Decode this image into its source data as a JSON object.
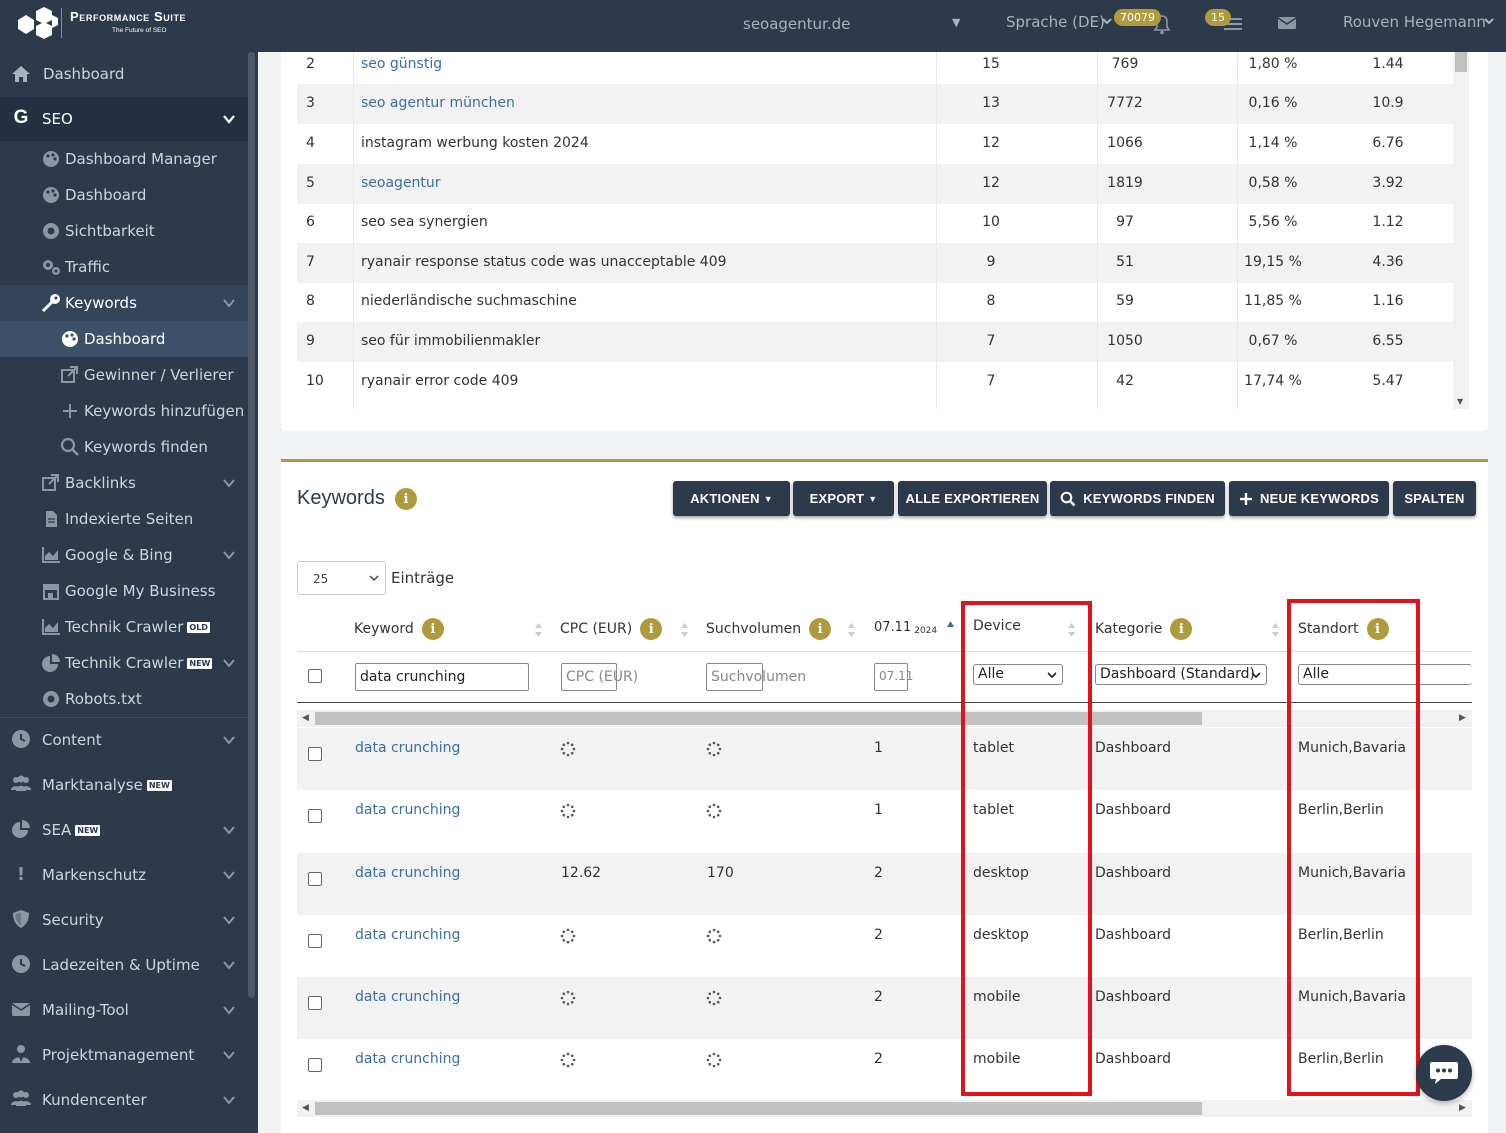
{
  "app": {
    "brand": "Performance Suite",
    "tagline": "The Future of SEO",
    "accent_color": "#b09a3e",
    "nav_color": "#2c3a4b"
  },
  "topbar": {
    "domain": "seoagentur.de",
    "language": "Sprache (DE)",
    "notifications_count": "70079",
    "tasks_count": "15",
    "user_name": "Rouven Hegemann"
  },
  "sidebar": {
    "items": [
      {
        "label": "Dashboard",
        "icon": "home-icon"
      },
      {
        "label": "SEO",
        "icon": "google-g-icon"
      },
      {
        "label": "Dashboard Manager",
        "icon": "palette-icon"
      },
      {
        "label": "Dashboard",
        "icon": "palette-icon"
      },
      {
        "label": "Sichtbarkeit",
        "icon": "eye-icon"
      },
      {
        "label": "Traffic",
        "icon": "gears-icon"
      },
      {
        "label": "Keywords",
        "icon": "key-icon"
      },
      {
        "label": "Dashboard",
        "icon": "palette-icon"
      },
      {
        "label": "Gewinner / Verlierer",
        "icon": "external-link-icon"
      },
      {
        "label": "Keywords hinzufügen",
        "icon": "plus-icon"
      },
      {
        "label": "Keywords finden",
        "icon": "search-icon"
      },
      {
        "label": "Backlinks",
        "icon": "external-link-icon"
      },
      {
        "label": "Indexierte Seiten",
        "icon": "file-icon"
      },
      {
        "label": "Google & Bing",
        "icon": "area-chart-icon"
      },
      {
        "label": "Google My Business",
        "icon": "store-icon"
      },
      {
        "label": "Technik Crawler",
        "icon": "area-chart-icon",
        "tag": "OLD"
      },
      {
        "label": "Technik Crawler",
        "icon": "pie-chart-icon",
        "tag": "NEW"
      },
      {
        "label": "Robots.txt",
        "icon": "eye-icon"
      },
      {
        "label": "Content",
        "icon": "clock-icon"
      },
      {
        "label": "Marktanalyse",
        "icon": "users-icon",
        "tag": "NEW"
      },
      {
        "label": "SEA",
        "icon": "pie-chart-icon",
        "tag": "NEW"
      },
      {
        "label": "Markenschutz",
        "icon": "exclamation-icon"
      },
      {
        "label": "Security",
        "icon": "shield-icon"
      },
      {
        "label": "Ladezeiten & Uptime",
        "icon": "clock-icon"
      },
      {
        "label": "Mailing-Tool",
        "icon": "envelope-icon"
      },
      {
        "label": "Projektmanagement",
        "icon": "user-tie-icon"
      },
      {
        "label": "Kundencenter",
        "icon": "users-icon"
      }
    ]
  },
  "top_table": {
    "rows": [
      {
        "rank": "2",
        "keyword": "seo günstig",
        "link": true,
        "a": "15",
        "b": "769",
        "c": "1,80 %",
        "d": "1.44"
      },
      {
        "rank": "3",
        "keyword": "seo agentur münchen",
        "link": true,
        "a": "13",
        "b": "7772",
        "c": "0,16 %",
        "d": "10.9"
      },
      {
        "rank": "4",
        "keyword": "instagram werbung kosten 2024",
        "link": false,
        "a": "12",
        "b": "1066",
        "c": "1,14 %",
        "d": "6.76"
      },
      {
        "rank": "5",
        "keyword": "seoagentur",
        "link": true,
        "a": "12",
        "b": "1819",
        "c": "0,58 %",
        "d": "3.92"
      },
      {
        "rank": "6",
        "keyword": "seo sea synergien",
        "link": false,
        "a": "10",
        "b": "97",
        "c": "5,56 %",
        "d": "1.12"
      },
      {
        "rank": "7",
        "keyword": "ryanair response status code was unacceptable 409",
        "link": false,
        "a": "9",
        "b": "51",
        "c": "19,15 %",
        "d": "4.36"
      },
      {
        "rank": "8",
        "keyword": "niederländische suchmaschine",
        "link": false,
        "a": "8",
        "b": "59",
        "c": "11,85 %",
        "d": "1.16"
      },
      {
        "rank": "9",
        "keyword": "seo für immobilienmakler",
        "link": false,
        "a": "7",
        "b": "1050",
        "c": "0,67 %",
        "d": "6.55"
      },
      {
        "rank": "10",
        "keyword": "ryanair error code 409",
        "link": false,
        "a": "7",
        "b": "42",
        "c": "17,74 %",
        "d": "5.47"
      }
    ]
  },
  "keywords_panel": {
    "title": "Keywords",
    "buttons": {
      "aktionen": "AKTIONEN",
      "export": "EXPORT",
      "alle_exportieren": "ALLE EXPORTIEREN",
      "keywords_finden": "KEYWORDS FINDEN",
      "neue_keywords": "NEUE KEYWORDS",
      "spalten": "SPALTEN"
    },
    "page_length": "25",
    "page_length_label": "Einträge",
    "columns": {
      "keyword": "Keyword",
      "cpc": "CPC (EUR)",
      "volume": "Suchvolumen",
      "date": "07.11",
      "date_year": "2024",
      "device": "Device",
      "category": "Kategorie",
      "location": "Standort"
    },
    "filters": {
      "keyword": "data crunching",
      "cpc_placeholder": "CPC (EUR)",
      "volume_placeholder": "Suchvolumen",
      "date_placeholder": "07.11",
      "device": "Alle",
      "category": "Dashboard (Standard)",
      "location": "Alle"
    },
    "rows": [
      {
        "keyword": "data crunching",
        "cpc": "",
        "volume": "",
        "date_value": "1",
        "device": "tablet",
        "category": "Dashboard",
        "location": "Munich,Bavaria"
      },
      {
        "keyword": "data crunching",
        "cpc": "",
        "volume": "",
        "date_value": "1",
        "device": "tablet",
        "category": "Dashboard",
        "location": "Berlin,Berlin"
      },
      {
        "keyword": "data crunching",
        "cpc": "12.62",
        "volume": "170",
        "date_value": "2",
        "device": "desktop",
        "category": "Dashboard",
        "location": "Munich,Bavaria"
      },
      {
        "keyword": "data crunching",
        "cpc": "",
        "volume": "",
        "date_value": "2",
        "device": "desktop",
        "category": "Dashboard",
        "location": "Berlin,Berlin"
      },
      {
        "keyword": "data crunching",
        "cpc": "",
        "volume": "",
        "date_value": "2",
        "device": "mobile",
        "category": "Dashboard",
        "location": "Munich,Bavaria"
      },
      {
        "keyword": "data crunching",
        "cpc": "",
        "volume": "",
        "date_value": "2",
        "device": "mobile",
        "category": "Dashboard",
        "location": "Berlin,Berlin"
      }
    ]
  },
  "highlight_color": "#e3131b"
}
